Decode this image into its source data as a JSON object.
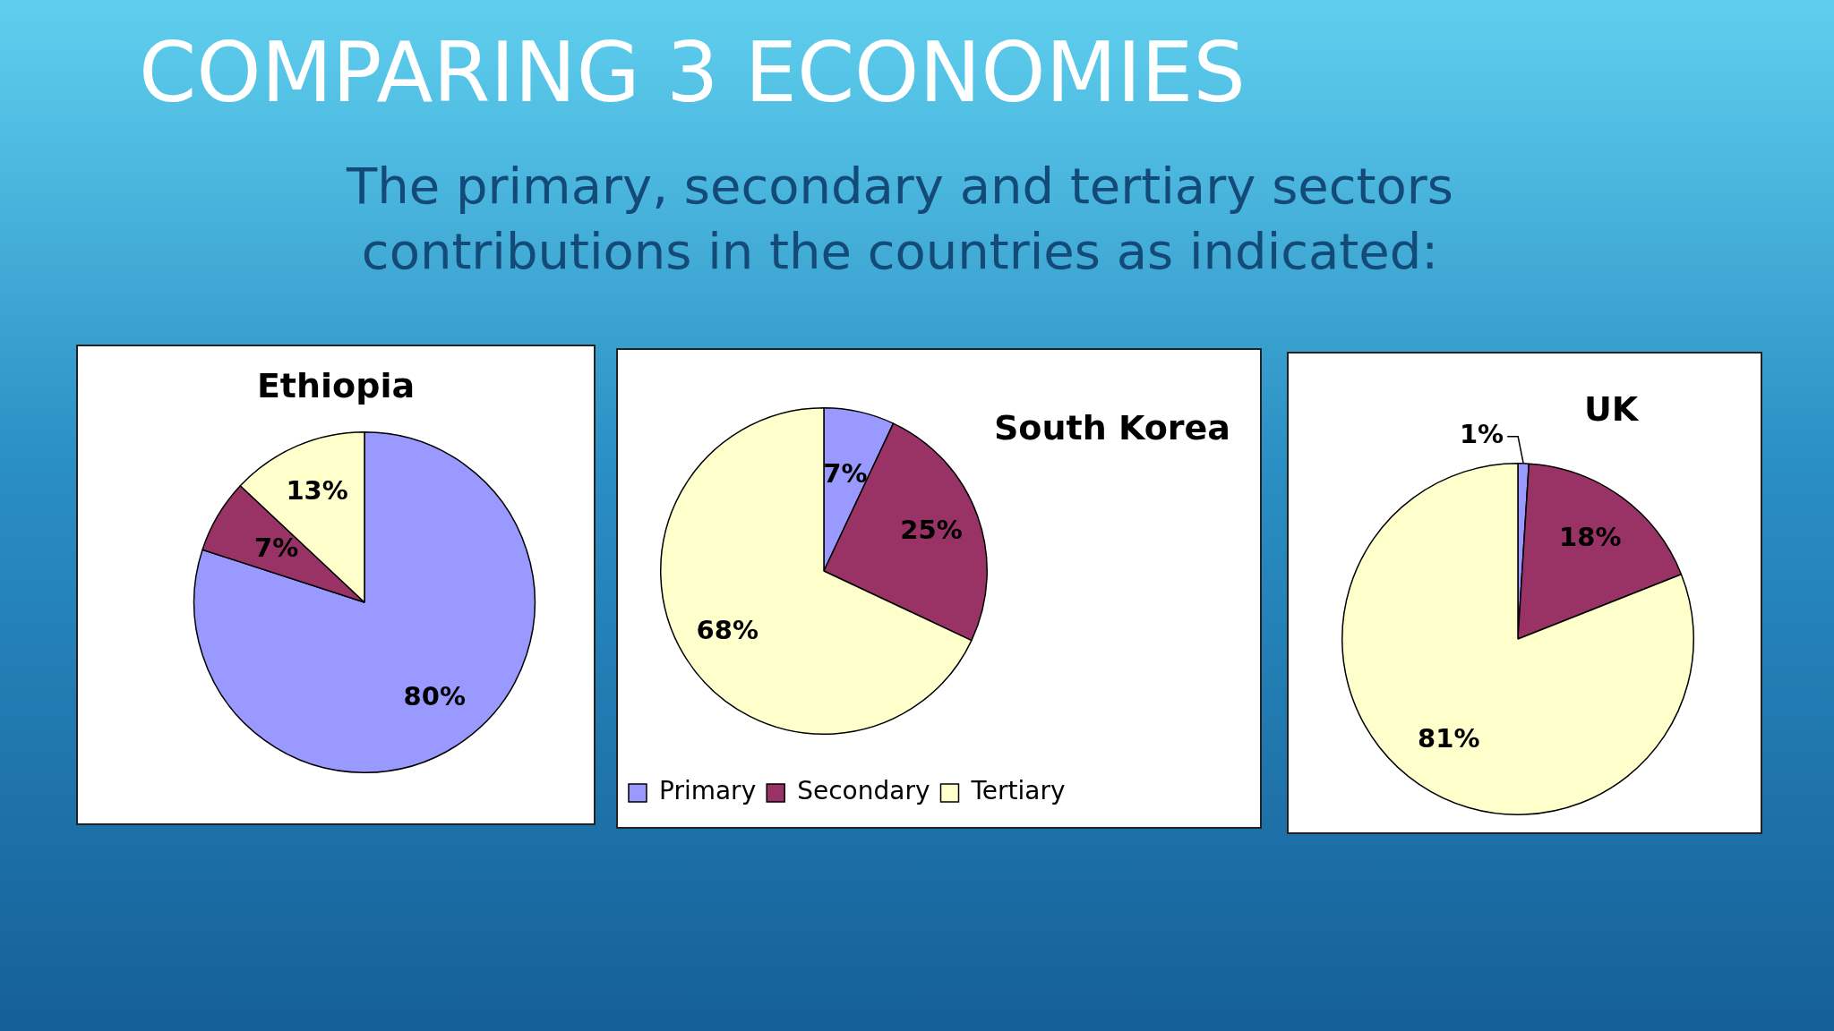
{
  "chart_data": [
    {
      "type": "other",
      "title": "COMPARING 3 ECONOMIES",
      "subtitle": "The primary, secondary and tertiary sectors contributions in the countries as indicated:"
    },
    {
      "type": "pie",
      "title": "Ethiopia",
      "categories": [
        null,
        null,
        null
      ],
      "values": [
        80,
        7,
        13
      ],
      "value_labels": [
        "80%",
        "7%",
        "13%"
      ],
      "colors": [
        "#9999ff",
        "#993366",
        "#ffffcc"
      ]
    },
    {
      "type": "pie",
      "title": "South Korea",
      "categories": [
        "Primary",
        "Secondary",
        "Tertiary"
      ],
      "values": [
        7,
        25,
        68
      ],
      "value_labels": [
        "7%",
        "25%",
        "68%"
      ],
      "colors": [
        "#9999ff",
        "#993366",
        "#ffffcc"
      ],
      "legend": "bottom"
    },
    {
      "type": "pie",
      "title": "UK",
      "categories": [
        null,
        null,
        null
      ],
      "values": [
        1,
        18,
        81
      ],
      "value_labels": [
        "1%",
        "18%",
        "81%"
      ],
      "colors": [
        "#9999ff",
        "#993366",
        "#ffffcc"
      ]
    }
  ]
}
